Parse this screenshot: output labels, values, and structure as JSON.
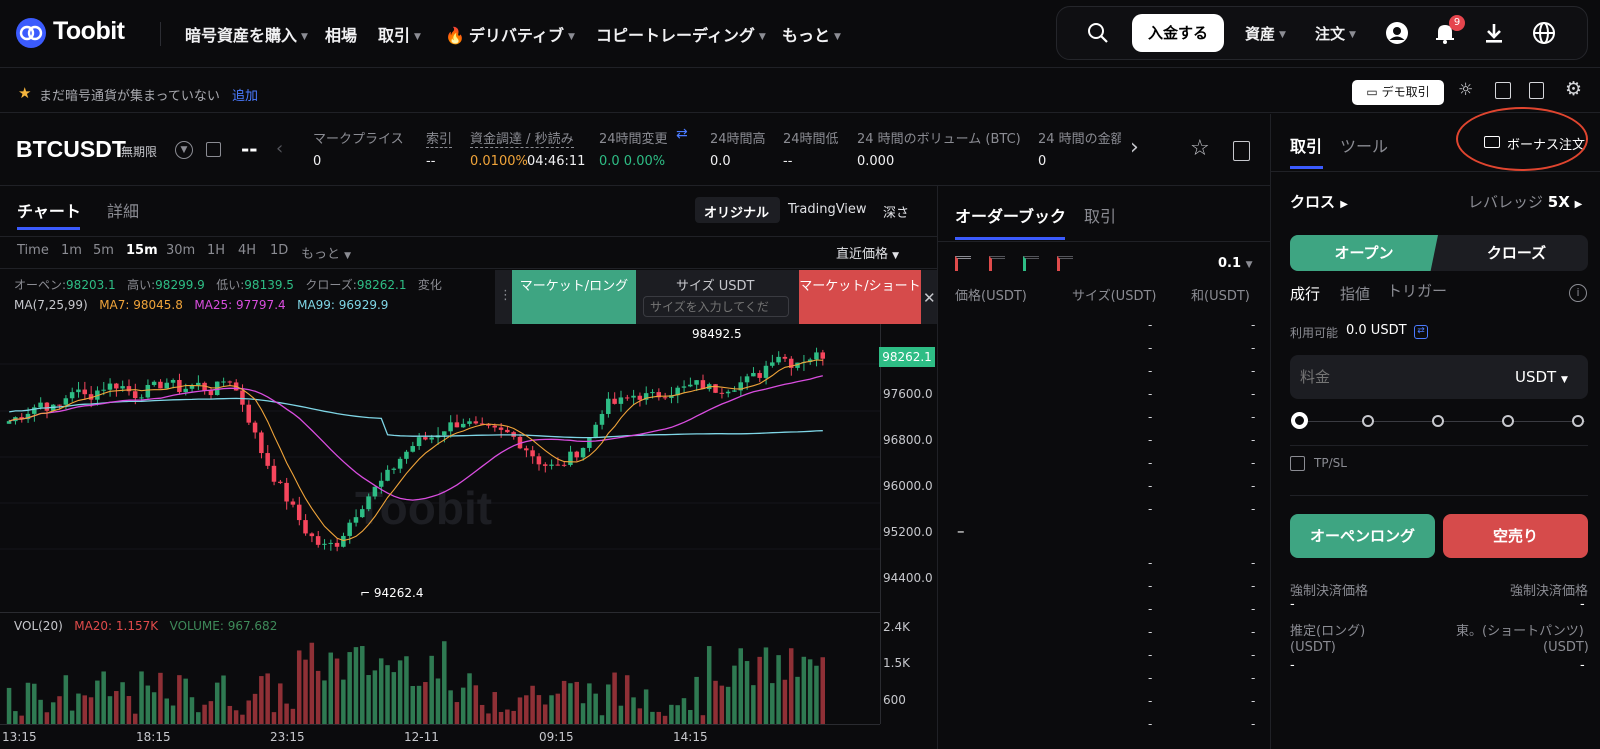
{
  "header": {
    "brand": "Toobit",
    "nav": [
      {
        "label": "暗号資産を購入",
        "caret": true
      },
      {
        "label": "相場",
        "caret": false
      },
      {
        "label": "取引",
        "caret": true
      },
      {
        "label": "デリバティブ",
        "caret": true
      },
      {
        "label": "コピートレーディング",
        "caret": true
      },
      {
        "label": "もっと",
        "caret": true
      }
    ],
    "deposit_label": "入金する",
    "assets_label": "資産",
    "orders_label": "注文",
    "notification_count": "9"
  },
  "subbar": {
    "favorites_text": "まだ暗号通貨が集まっていない",
    "add_link": "追加",
    "demo_label": "デモ取引"
  },
  "ticker": {
    "symbol": "BTCUSDT",
    "contract_type": "無期限",
    "last_price": "--",
    "stats": [
      {
        "label": "マークプライス",
        "value": "0"
      },
      {
        "label": "索引",
        "value": "--"
      },
      {
        "label": "資金調達 / 秒読み",
        "value": "0.0100%",
        "value2": "04:46:11"
      },
      {
        "label": "24時間変更",
        "value": "0.0 0.00%"
      },
      {
        "label": "24時間高",
        "value": "0.0"
      },
      {
        "label": "24時間低",
        "value": "--"
      },
      {
        "label": "24 時間のボリューム (BTC)",
        "value": "0.000"
      },
      {
        "label": "24 時間の金額",
        "value": "0"
      }
    ]
  },
  "chart_panel": {
    "tabs": [
      "チャート",
      "詳細"
    ],
    "views": [
      "オリジナル",
      "TradingView",
      "深さ"
    ],
    "timeframes": [
      "Time",
      "1m",
      "5m",
      "15m",
      "30m",
      "1H",
      "4H",
      "1D",
      "もっと"
    ],
    "active_timeframe": "15m",
    "price_type": "直近価格",
    "ohlc": {
      "open_label": "オーペン:",
      "open": "98203.1",
      "high_label": "高い:",
      "high": "98299.9",
      "low_label": "低い:",
      "low": "98139.5",
      "close_label": "クローズ:",
      "close": "98262.1",
      "change_label": "変化"
    },
    "ma": {
      "label": "MA(7,25,99)",
      "ma7": "MA7: 98045.8",
      "ma25": "MA25: 97797.4",
      "ma99": "MA99: 96929.9"
    },
    "vol": {
      "label": "VOL(20)",
      "ma20": "MA20: 1.157K",
      "volume": "VOLUME: 967.682"
    },
    "quick_trade": {
      "long": "マーケット/ロング",
      "size_label": "サイズ USDT",
      "size_placeholder": "サイズを入力してくだ",
      "short": "マーケット/ショート"
    },
    "watermark": "Toobit",
    "colors": {
      "up": "#2ebd85",
      "down": "#f6465d",
      "ma7": "#f0a43a",
      "ma25": "#d94ddf",
      "ma99": "#7fd6e6"
    }
  },
  "chart_data": {
    "type": "candlestick",
    "price_axis": [
      "98262.1",
      "97600.0",
      "96800.0",
      "96000.0",
      "95200.0",
      "94400.0"
    ],
    "volume_axis": [
      "2.4K",
      "1.5K",
      "600"
    ],
    "time_axis": [
      "13:15",
      "18:15",
      "23:15",
      "12-11",
      "09:15",
      "14:15"
    ],
    "current_price": "98262.1",
    "high_marker": "98492.5",
    "low_marker": "94262.4",
    "close_path": [
      97000,
      97150,
      97350,
      97200,
      97600,
      97450,
      97650,
      97700,
      97500,
      97600,
      97750,
      97600,
      97700,
      97550,
      97850,
      97300,
      96500,
      95900,
      95400,
      94900,
      94600,
      94700,
      95200,
      95600,
      95900,
      96300,
      96600,
      96700,
      96900,
      97000,
      96850,
      96800,
      96750,
      96500,
      96200,
      96100,
      96350,
      96600,
      97300,
      97350,
      97500,
      97450,
      97550,
      97600,
      97700,
      97600,
      97650,
      97750,
      97900,
      98300,
      98100,
      98200,
      98262
    ]
  },
  "orderbook": {
    "tabs": [
      "オーダーブック",
      "取引"
    ],
    "precision": "0.1",
    "columns": [
      "価格(USDT)",
      "サイズ(USDT)",
      "和(USDT)"
    ]
  },
  "trade": {
    "tabs": [
      "取引",
      "ツール"
    ],
    "bonus_label": "ボーナス注文",
    "margin_mode": "クロス",
    "leverage_label": "レバレッジ",
    "leverage": "5X",
    "open_label": "オープン",
    "close_label": "クローズ",
    "order_types": [
      "成行",
      "指値",
      "トリガー"
    ],
    "available_label": "利用可能",
    "available": "0.0 USDT",
    "amount_placeholder": "料金",
    "amount_unit": "USDT",
    "tpsl_label": "TP/SL",
    "long_button": "オーペンロング",
    "short_button": "空売り",
    "liq_label": "強制決済価格",
    "liq_value": "-",
    "est_long_label": "推定(ロング)",
    "est_short_label": "東。(ショートパンツ)",
    "unit_label": "(USDT)",
    "est_value": "-"
  }
}
